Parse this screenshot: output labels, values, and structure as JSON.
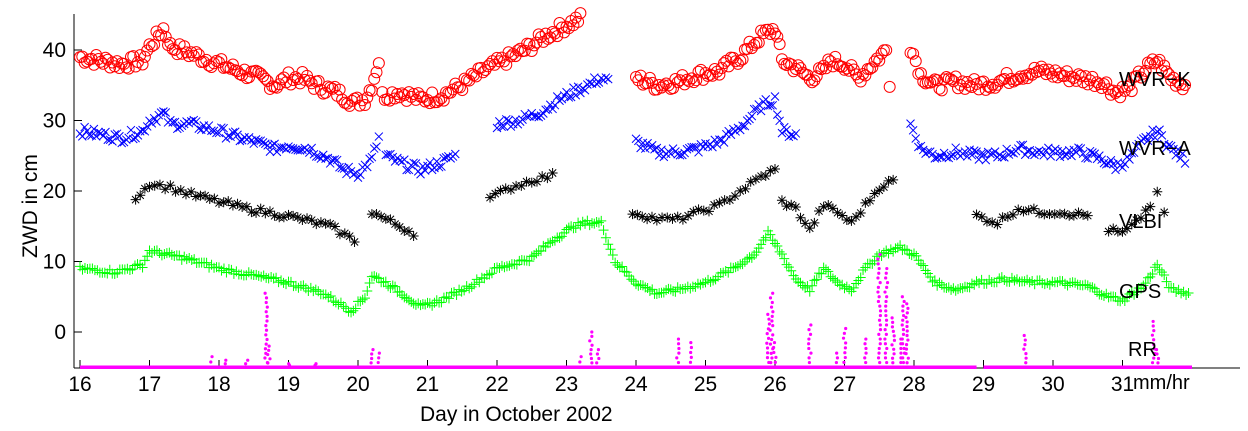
{
  "chart_data": {
    "type": "scatter",
    "title": "",
    "xlabel": "Day in October 2002",
    "ylabel": "ZWD in cm",
    "xlim": [
      16,
      32
    ],
    "ylim": [
      -5,
      45
    ],
    "x_ticks": [
      16,
      17,
      18,
      19,
      20,
      21,
      22,
      23,
      24,
      25,
      26,
      27,
      28,
      29,
      30,
      31
    ],
    "x_tick_labels": [
      "16",
      "17",
      "18",
      "19",
      "20",
      "21",
      "22",
      "23",
      "24",
      "25",
      "26",
      "27",
      "28",
      "29",
      "30",
      "31"
    ],
    "y_ticks": [
      0,
      10,
      20,
      30,
      40
    ],
    "y_tick_labels": [
      "0",
      "10",
      "20",
      "30",
      "40"
    ],
    "grid": false,
    "series_labels": {
      "wvr_k": "WVR−K",
      "wvr_a": "WVR−A",
      "vlbi": "VLBI",
      "gps": "GPS",
      "rr_line1": "RR",
      "rr_line2": "mm/hr"
    },
    "series": [
      {
        "key": "wvr_k",
        "marker": "circle",
        "color": "#ff0000",
        "segments": [
          [
            [
              16.0,
              39
            ],
            [
              16.3,
              38.5
            ],
            [
              16.6,
              38
            ],
            [
              16.9,
              38.5
            ],
            [
              17.0,
              40.5
            ],
            [
              17.2,
              43
            ],
            [
              17.3,
              40.5
            ],
            [
              17.6,
              39.5
            ],
            [
              18.0,
              38
            ],
            [
              18.3,
              37
            ],
            [
              18.6,
              36
            ],
            [
              18.8,
              35
            ],
            [
              19.0,
              36
            ],
            [
              19.2,
              36
            ],
            [
              19.4,
              35
            ],
            [
              19.7,
              34
            ],
            [
              19.95,
              32.5
            ],
            [
              20.1,
              33
            ],
            [
              20.2,
              35
            ],
            [
              20.3,
              38.5
            ]
          ],
          [
            [
              20.35,
              33.5
            ],
            [
              20.6,
              34
            ],
            [
              20.9,
              33
            ],
            [
              21.2,
              33.5
            ],
            [
              21.5,
              35
            ],
            [
              21.8,
              37
            ],
            [
              22.1,
              38.5
            ],
            [
              22.4,
              40
            ],
            [
              22.7,
              42
            ],
            [
              23.0,
              43.5
            ],
            [
              23.2,
              44.5
            ]
          ],
          [
            [
              24.0,
              36
            ],
            [
              24.3,
              35
            ],
            [
              24.6,
              35.5
            ],
            [
              24.9,
              36.5
            ],
            [
              25.2,
              37
            ],
            [
              25.5,
              39
            ],
            [
              25.8,
              42
            ],
            [
              26.0,
              43
            ],
            [
              26.1,
              38.5
            ],
            [
              26.3,
              37.5
            ],
            [
              26.5,
              36
            ],
            [
              26.7,
              37
            ],
            [
              26.8,
              38.5
            ],
            [
              27.0,
              38
            ],
            [
              27.2,
              36
            ],
            [
              27.4,
              38
            ],
            [
              27.6,
              40
            ],
            [
              27.65,
              35.5
            ]
          ],
          [
            [
              27.95,
              40.5
            ],
            [
              28.1,
              36.5
            ],
            [
              28.3,
              35
            ],
            [
              28.6,
              35.5
            ],
            [
              28.9,
              35
            ],
            [
              29.2,
              35.5
            ],
            [
              29.5,
              36.5
            ],
            [
              29.8,
              37
            ],
            [
              30.1,
              36.5
            ],
            [
              30.4,
              36
            ],
            [
              30.7,
              35.5
            ],
            [
              30.9,
              34
            ],
            [
              31.1,
              34.5
            ],
            [
              31.3,
              37
            ],
            [
              31.5,
              38.5
            ],
            [
              31.7,
              36
            ],
            [
              31.9,
              35
            ]
          ]
        ]
      },
      {
        "key": "wvr_a",
        "marker": "x",
        "color": "#0000ff",
        "segments": [
          [
            [
              16.0,
              28.5
            ],
            [
              16.3,
              28
            ],
            [
              16.6,
              27.5
            ],
            [
              16.9,
              28.5
            ],
            [
              17.0,
              30
            ],
            [
              17.2,
              31
            ],
            [
              17.3,
              29.5
            ],
            [
              17.6,
              29.5
            ],
            [
              18.0,
              28.5
            ],
            [
              18.3,
              27.5
            ],
            [
              18.5,
              27
            ],
            [
              18.8,
              26
            ],
            [
              19.0,
              26.5
            ],
            [
              19.3,
              26
            ],
            [
              19.6,
              24.5
            ],
            [
              19.8,
              23
            ],
            [
              20.0,
              22.5
            ],
            [
              20.2,
              24.5
            ],
            [
              20.3,
              27.5
            ]
          ],
          [
            [
              20.4,
              25
            ],
            [
              20.6,
              24
            ],
            [
              20.9,
              23
            ],
            [
              21.2,
              24
            ],
            [
              21.4,
              25
            ]
          ],
          [
            [
              22.0,
              29.5
            ],
            [
              22.3,
              30
            ],
            [
              22.6,
              31
            ],
            [
              22.9,
              33
            ],
            [
              23.2,
              34.5
            ],
            [
              23.5,
              36
            ],
            [
              23.6,
              35.5
            ]
          ],
          [
            [
              24.0,
              27
            ],
            [
              24.3,
              25.5
            ],
            [
              24.6,
              25.5
            ],
            [
              24.9,
              26
            ],
            [
              25.2,
              27
            ],
            [
              25.5,
              29
            ],
            [
              25.8,
              32
            ],
            [
              26.0,
              33
            ],
            [
              26.1,
              28.5
            ],
            [
              26.3,
              28
            ]
          ],
          [
            [
              27.95,
              29.5
            ],
            [
              28.1,
              26
            ],
            [
              28.3,
              25
            ],
            [
              28.6,
              25.5
            ],
            [
              28.9,
              25
            ],
            [
              29.2,
              25
            ],
            [
              29.5,
              26
            ],
            [
              29.8,
              25.5
            ],
            [
              30.1,
              25.5
            ],
            [
              30.4,
              25.5
            ],
            [
              30.7,
              24.5
            ],
            [
              30.9,
              23.5
            ],
            [
              31.1,
              24.5
            ],
            [
              31.3,
              27
            ],
            [
              31.5,
              28.5
            ],
            [
              31.7,
              26
            ],
            [
              31.9,
              24.5
            ]
          ]
        ]
      },
      {
        "key": "vlbi",
        "marker": "asterisk",
        "color": "#000000",
        "segments": [
          [
            [
              16.8,
              19
            ],
            [
              17.0,
              21
            ],
            [
              17.3,
              20.5
            ],
            [
              17.6,
              19.5
            ],
            [
              18.0,
              18.5
            ],
            [
              18.4,
              17.5
            ],
            [
              18.8,
              16.8
            ],
            [
              19.2,
              16
            ],
            [
              19.6,
              15
            ],
            [
              19.95,
              13
            ]
          ],
          [
            [
              20.2,
              17
            ],
            [
              20.4,
              16
            ],
            [
              20.6,
              15
            ],
            [
              20.8,
              14
            ]
          ],
          [
            [
              21.9,
              19
            ],
            [
              22.2,
              20.5
            ],
            [
              22.5,
              21.5
            ],
            [
              22.8,
              22.2
            ]
          ],
          [
            [
              23.95,
              17
            ],
            [
              24.3,
              16
            ],
            [
              24.6,
              16
            ],
            [
              24.9,
              17
            ],
            [
              25.2,
              18
            ],
            [
              25.5,
              20
            ],
            [
              25.8,
              22
            ],
            [
              26.0,
              23
            ]
          ],
          [
            [
              26.1,
              18.5
            ],
            [
              26.3,
              17.5
            ],
            [
              26.5,
              14.5
            ],
            [
              26.7,
              18
            ],
            [
              26.9,
              17
            ],
            [
              27.1,
              15.5
            ],
            [
              27.3,
              18
            ],
            [
              27.5,
              20.5
            ],
            [
              27.7,
              21.5
            ]
          ],
          [
            [
              28.9,
              16.5
            ],
            [
              29.2,
              15.5
            ],
            [
              29.5,
              17.5
            ],
            [
              29.8,
              17
            ],
            [
              30.1,
              17
            ],
            [
              30.5,
              16.5
            ]
          ],
          [
            [
              30.8,
              14.5
            ],
            [
              31.0,
              14
            ],
            [
              31.2,
              15.5
            ],
            [
              31.4,
              18
            ],
            [
              31.5,
              19.5
            ],
            [
              31.6,
              17
            ]
          ]
        ]
      },
      {
        "key": "gps",
        "marker": "plus",
        "color": "#00ff00",
        "segments": [
          [
            [
              16.0,
              9
            ],
            [
              16.5,
              8.5
            ],
            [
              16.9,
              9.5
            ],
            [
              17.0,
              11.5
            ],
            [
              17.5,
              10.5
            ],
            [
              18.0,
              9
            ],
            [
              18.5,
              8
            ],
            [
              19.0,
              7
            ],
            [
              19.5,
              5.5
            ],
            [
              19.9,
              3
            ],
            [
              20.1,
              5
            ],
            [
              20.2,
              8
            ],
            [
              20.4,
              7
            ],
            [
              20.7,
              5
            ],
            [
              20.9,
              3.5
            ],
            [
              21.2,
              4.5
            ],
            [
              21.6,
              6.5
            ],
            [
              22.0,
              9
            ],
            [
              22.5,
              10.5
            ],
            [
              22.8,
              13
            ],
            [
              23.1,
              15
            ],
            [
              23.3,
              15.5
            ],
            [
              23.5,
              15.5
            ],
            [
              23.7,
              10
            ],
            [
              24.0,
              7
            ],
            [
              24.3,
              5.5
            ],
            [
              24.6,
              6
            ],
            [
              25.0,
              7
            ],
            [
              25.4,
              9
            ],
            [
              25.7,
              11
            ],
            [
              25.9,
              14
            ],
            [
              26.1,
              11
            ],
            [
              26.3,
              7.5
            ],
            [
              26.5,
              6
            ],
            [
              26.7,
              9
            ],
            [
              26.9,
              7
            ],
            [
              27.1,
              6
            ],
            [
              27.3,
              9
            ],
            [
              27.5,
              11
            ],
            [
              27.8,
              12
            ],
            [
              28.0,
              11
            ],
            [
              28.3,
              7
            ],
            [
              28.6,
              6
            ],
            [
              28.9,
              7
            ],
            [
              29.3,
              7.5
            ],
            [
              29.7,
              7
            ],
            [
              30.1,
              7
            ],
            [
              30.5,
              6.5
            ],
            [
              30.8,
              5
            ],
            [
              31.0,
              4.5
            ],
            [
              31.3,
              6.5
            ],
            [
              31.5,
              9.5
            ],
            [
              31.7,
              6
            ],
            [
              31.95,
              5.5
            ]
          ]
        ]
      },
      {
        "key": "rr",
        "marker": "dot",
        "color": "#ff00ff",
        "baseline": -5,
        "baseline_ranges": [
          [
            16.0,
            28.9
          ],
          [
            29.0,
            32.0
          ]
        ],
        "spikes": [
          [
            17.9,
            -3.5
          ],
          [
            18.1,
            -4
          ],
          [
            18.4,
            -4
          ],
          [
            18.68,
            5.5
          ],
          [
            18.72,
            -2
          ],
          [
            19.0,
            -4.5
          ],
          [
            19.4,
            -4.5
          ],
          [
            20.2,
            -2.5
          ],
          [
            20.3,
            -3
          ],
          [
            23.2,
            -3.5
          ],
          [
            23.35,
            0
          ],
          [
            23.45,
            -2.5
          ],
          [
            24.6,
            -1
          ],
          [
            24.8,
            -1.5
          ],
          [
            25.95,
            5.5
          ],
          [
            25.9,
            2.5
          ],
          [
            26.0,
            -1.5
          ],
          [
            26.5,
            1
          ],
          [
            26.9,
            -3
          ],
          [
            27.0,
            0.5
          ],
          [
            27.3,
            -1
          ],
          [
            27.5,
            11
          ],
          [
            27.6,
            9
          ],
          [
            27.7,
            2
          ],
          [
            27.85,
            5
          ],
          [
            27.9,
            4
          ],
          [
            27.8,
            -1
          ],
          [
            29.6,
            -0.5
          ],
          [
            31.45,
            1.5
          ],
          [
            31.5,
            -2.5
          ]
        ]
      }
    ]
  }
}
